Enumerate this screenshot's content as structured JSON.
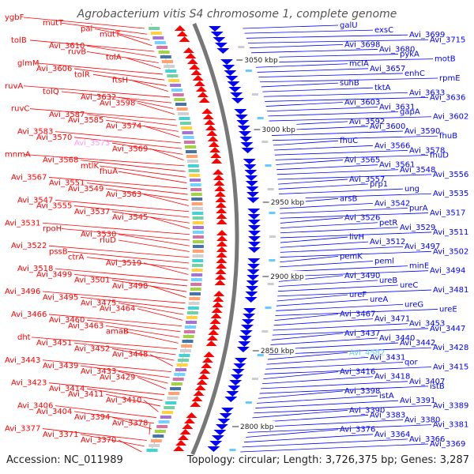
{
  "title": "Agrobacterium vitis S4 chromosome 1, complete genome",
  "accession": "Accession: NC_011989",
  "topology": "Topology: circular; Length: 3,726,375 bp; Genes: 3,287",
  "colors": {
    "forward": "#ff0000",
    "reverse": "#0000ff",
    "highlight": "#ff99ff",
    "highlight2": "#66ccff",
    "backbone": "#888888"
  },
  "kbp_markers": [
    "3050 kbp",
    "3000 kbp",
    "2950 kbp",
    "2900 kbp",
    "2850 kbp",
    "2800 kbp"
  ],
  "left_labels": [
    "ygbF",
    "mutT",
    "pal",
    "mutT",
    "tolB",
    "Avi_3610",
    "ruvB",
    "tolA",
    "glmM",
    "Avi_3606",
    "tolR",
    "ftsH",
    "ruvA",
    "tolQ",
    "Avi_3632",
    "Avi_3598",
    "ruvC",
    "Avi_3587",
    "Avi_3585",
    "Avi_3574",
    "Avi_3583",
    "Avi_3570",
    "Avi_3573",
    "Avi_3569",
    "mnmA",
    "Avi_3568",
    "mtlK",
    "fhuA",
    "Avi_3567",
    "Avi_3551",
    "Avi_3549",
    "Avi_3563",
    "Avi_3547",
    "Avi_3555",
    "Avi_3537",
    "Avi_3545",
    "Avi_3531",
    "rpoH",
    "Avi_3530",
    "rluD",
    "Avi_3522",
    "pssB",
    "ctrA",
    "Avi_3519",
    "Avi_3518",
    "Avi_3499",
    "Avi_3501",
    "Avi_3498",
    "Avi_3496",
    "Avi_3495",
    "Avi_3475",
    "Avi_3464",
    "Avi_3466",
    "Avi_3460",
    "Avi_3463",
    "amaB",
    "dht",
    "Avi_3451",
    "Avi_3452",
    "Avi_3448",
    "Avi_3443",
    "Avi_3439",
    "Avi_3433",
    "Avi_3429",
    "Avi_3423",
    "Avi_3414",
    "Avi_3411",
    "Avi_3410",
    "Avi_3406",
    "Avi_3404",
    "Avi_3394",
    "Avi_3378",
    "Avi_3377",
    "Avi_3371",
    "Avi_3370"
  ],
  "right_labels": [
    "galU",
    "exsC",
    "Avi_3699",
    "Avi_3715",
    "Avi_3698",
    "Avi_3680",
    "pykA",
    "motB",
    "mclA",
    "Avi_3657",
    "enhC",
    "rpmE",
    "suhB",
    "tktA",
    "Avi_3633",
    "Avi_3636",
    "Avi_3603",
    "Avi_3631",
    "gapA",
    "Avi_3602",
    "Avi_3592",
    "Avi_3600",
    "Avi_3590",
    "fhuB",
    "fhuC",
    "Avi_3566",
    "Avi_3578",
    "fhuD",
    "Avi_3565",
    "Avi_3561",
    "Avi_3548",
    "Avi_3556",
    "Avi_3557",
    "prp1",
    "ung",
    "Avi_3535",
    "arsB",
    "Avi_3542",
    "purA",
    "Avi_3517",
    "Avi_3526",
    "petR",
    "Avi_3529",
    "Avi_3511",
    "livH",
    "Avi_3512",
    "Avi_3497",
    "Avi_3502",
    "pemK",
    "peml",
    "minE",
    "Avi_3494",
    "Avi_3490",
    "ureB",
    "ureC",
    "Avi_3481",
    "ureF",
    "ureA",
    "ureG",
    "ureE",
    "Avi_3467",
    "Avi_3471",
    "Avi_3453",
    "Avi_3447",
    "Avi_3437",
    "Avi_3440",
    "Avi_3442",
    "Avi_3428",
    "Avi_4582",
    "Avi_3431",
    "qor",
    "Avi_3415",
    "Avi_3416",
    "Avi_3418",
    "Avi_3407",
    "istB",
    "Avi_3398",
    "istA",
    "Avi_3391",
    "Avi_3389",
    "Avi_3390",
    "Avi_3383",
    "Avi_3380",
    "Avi_3381",
    "Avi_3376",
    "Avi_3364",
    "Avi_3366",
    "Avi_3369"
  ]
}
